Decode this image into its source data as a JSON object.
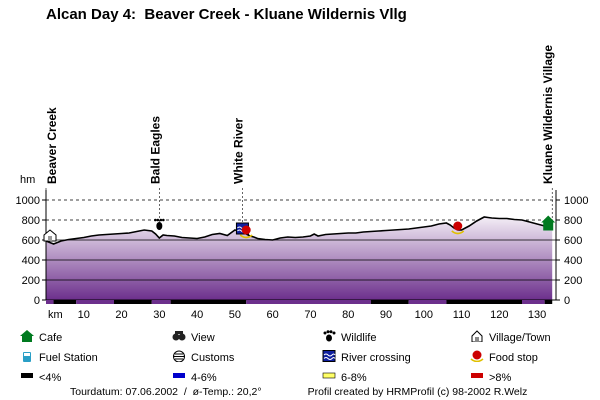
{
  "title": "Alcan Day 4:  Beaver Creek - Kluane Wildernis Vllg",
  "chart_data": {
    "type": "area",
    "title": "Alcan Day 4:  Beaver Creek - Kluane Wildernis Vllg",
    "ylabel": "hm",
    "xlabel": "km",
    "xlim": [
      0,
      135
    ],
    "ylim": [
      0,
      1000
    ],
    "x_ticks": [
      10,
      20,
      30,
      40,
      50,
      60,
      70,
      80,
      90,
      100,
      110,
      120,
      130
    ],
    "y_ticks": [
      0,
      200,
      400,
      600,
      800,
      1000
    ],
    "grid": "dashed horizontal lines at 800 and 1000; solid at 200-600",
    "profile": {
      "x": [
        0,
        2,
        4,
        6,
        8,
        10,
        12,
        14,
        16,
        18,
        20,
        22,
        24,
        26,
        28,
        29,
        30,
        31,
        32,
        34,
        36,
        38,
        40,
        42,
        44,
        46,
        48,
        50,
        51,
        52,
        53,
        54,
        55,
        56,
        58,
        60,
        62,
        64,
        66,
        68,
        70,
        71,
        72,
        74,
        76,
        78,
        80,
        82,
        84,
        86,
        88,
        90,
        92,
        94,
        96,
        98,
        100,
        102,
        104,
        106,
        107,
        108,
        109,
        110,
        111,
        112,
        114,
        116,
        117,
        118,
        120,
        122,
        124,
        126,
        128,
        130,
        132,
        134
      ],
      "y": [
        590,
        560,
        590,
        605,
        615,
        625,
        640,
        650,
        655,
        660,
        665,
        670,
        685,
        700,
        690,
        660,
        620,
        650,
        645,
        640,
        625,
        620,
        615,
        630,
        655,
        665,
        645,
        700,
        690,
        700,
        660,
        640,
        630,
        615,
        605,
        600,
        620,
        630,
        625,
        630,
        640,
        660,
        640,
        655,
        660,
        665,
        670,
        670,
        680,
        685,
        690,
        695,
        700,
        705,
        710,
        720,
        730,
        740,
        760,
        770,
        750,
        720,
        700,
        700,
        720,
        740,
        790,
        830,
        825,
        820,
        815,
        815,
        805,
        800,
        780,
        760,
        740,
        725
      ]
    },
    "location_labels": [
      {
        "name": "Beaver Creek",
        "km": 0
      },
      {
        "name": "Bald Eagles",
        "km": 30
      },
      {
        "name": "White River",
        "km": 52
      },
      {
        "name": "Kluane Wildernis Village",
        "km": 134
      }
    ],
    "markers": [
      {
        "type": "Village/Town",
        "km": 0,
        "elev": 590
      },
      {
        "type": "Wildlife",
        "km": 30,
        "elev": 620
      },
      {
        "type": "River crossing",
        "km": 52,
        "elev": 700
      },
      {
        "type": "Food stop",
        "km": 53,
        "elev": 660
      },
      {
        "type": "Food stop",
        "km": 109,
        "elev": 700
      },
      {
        "type": "Cafe",
        "km": 134,
        "elev": 725
      }
    ],
    "gradient_segments": [
      {
        "class": ">8%",
        "x": [
          0,
          2
        ]
      },
      {
        "class": "<4%",
        "x": [
          2,
          8
        ]
      },
      {
        "class": ">8%",
        "x": [
          8,
          18
        ]
      },
      {
        "class": "<4%",
        "x": [
          18,
          28
        ]
      },
      {
        "class": ">8%",
        "x": [
          28,
          33
        ]
      },
      {
        "class": "<4%",
        "x": [
          33,
          53
        ]
      },
      {
        "class": ">8%",
        "x": [
          53,
          86
        ]
      },
      {
        "class": "<4%",
        "x": [
          86,
          96
        ]
      },
      {
        "class": ">8%",
        "x": [
          96,
          106
        ]
      },
      {
        "class": "<4%",
        "x": [
          106,
          126
        ]
      },
      {
        "class": ">8%",
        "x": [
          126,
          132
        ]
      },
      {
        "class": "<4%",
        "x": [
          132,
          134
        ]
      }
    ]
  },
  "legend": [
    {
      "icon": "cafe",
      "label": "Cafe"
    },
    {
      "icon": "view",
      "label": "View"
    },
    {
      "icon": "wildlife",
      "label": "Wildlife"
    },
    {
      "icon": "village",
      "label": "Village/Town"
    },
    {
      "icon": "fuel",
      "label": "Fuel Station"
    },
    {
      "icon": "customs",
      "label": "Customs"
    },
    {
      "icon": "river",
      "label": "River crossing"
    },
    {
      "icon": "food",
      "label": "Food stop"
    },
    {
      "icon": "grade-lt4",
      "label": "<4%"
    },
    {
      "icon": "grade-4-6",
      "label": "4-6%"
    },
    {
      "icon": "grade-6-8",
      "label": "6-8%"
    },
    {
      "icon": "grade-gt8",
      "label": ">8%"
    }
  ],
  "colors": {
    "cafe": "#007a1f",
    "wildlife": "#000000",
    "grade_lt4": "#000000",
    "grade_4_6": "#0000cc",
    "grade_6_8": "#ffff66",
    "grade_gt8": "#cc0000",
    "area_top": "#f4eef6",
    "area_bottom": "#6c2f8c"
  },
  "footer": {
    "left": "Tourdatum: 07.06.2002  /  ø-Temp.: 20,2°",
    "right": "Profil created by HRMProfil (c) 98-2002 R.Welz"
  }
}
